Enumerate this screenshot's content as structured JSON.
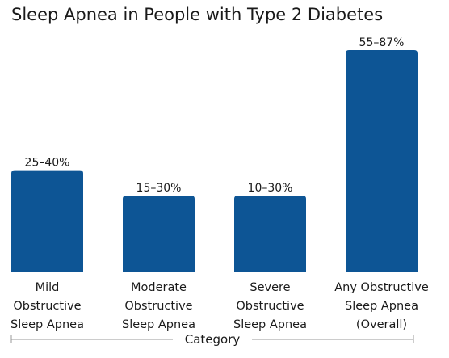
{
  "chart_data": {
    "type": "bar",
    "title": "Sleep Apnea in People with Type 2 Diabetes",
    "xlabel": "Category",
    "ylabel": "",
    "categories": [
      [
        "Mild",
        "Obstructive",
        "Sleep Apnea"
      ],
      [
        "Moderate",
        "Obstructive",
        "Sleep Apnea"
      ],
      [
        "Severe",
        "Obstructive",
        "Sleep Apnea"
      ],
      [
        "Any Obstructive",
        "Sleep Apnea",
        "(Overall)"
      ]
    ],
    "values": [
      40,
      30,
      30,
      87
    ],
    "value_labels": [
      "25–40%",
      "15–30%",
      "10–30%",
      "55–87%"
    ],
    "ylim": [
      0,
      87
    ],
    "grid": false,
    "bar_color": "#0d5595",
    "text_color": "#1a1a1a"
  }
}
